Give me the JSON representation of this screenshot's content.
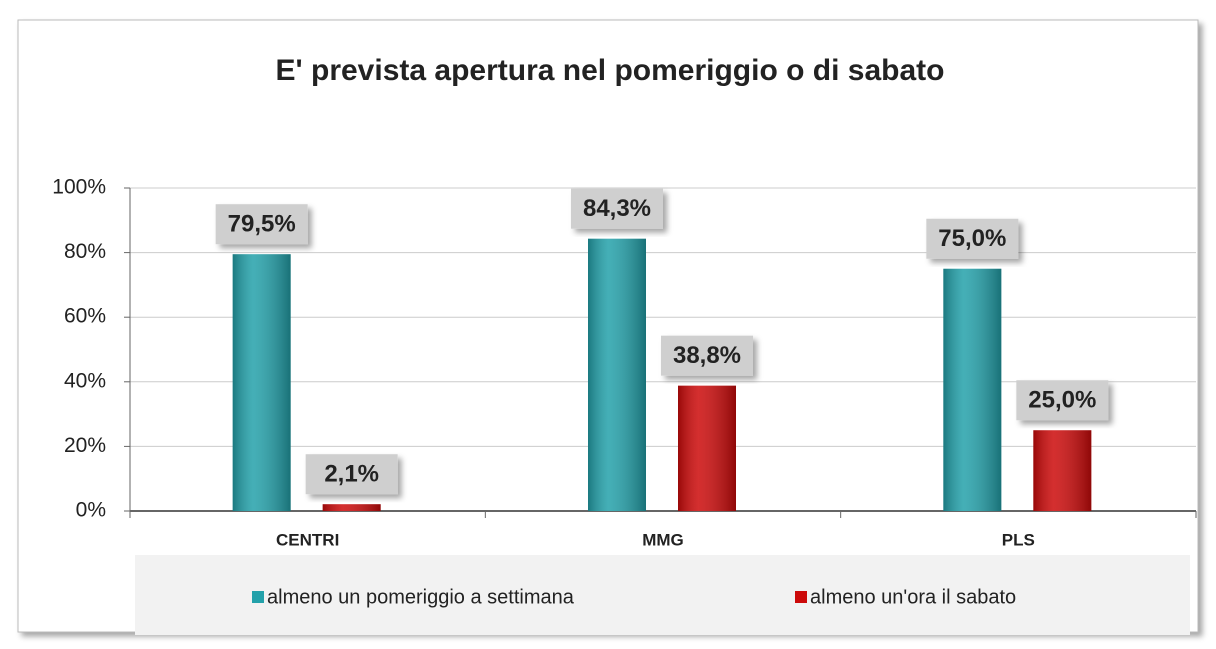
{
  "chart_data": {
    "type": "bar",
    "title": "E' prevista apertura nel pomeriggio o di sabato",
    "categories": [
      "CENTRI",
      "MMG",
      "PLS"
    ],
    "series": [
      {
        "name": "almeno un pomeriggio a settimana",
        "color": "#23a1aa",
        "values": [
          79.5,
          84.3,
          75.0
        ],
        "value_labels": [
          "79,5%",
          "84,3%",
          "75,0%"
        ]
      },
      {
        "name": "almeno un'ora il sabato",
        "color": "#cc0a0a",
        "values": [
          2.1,
          38.8,
          25.0
        ],
        "value_labels": [
          "2,1%",
          "38,8%",
          "25,0%"
        ]
      }
    ],
    "ylim": [
      0,
      100
    ],
    "yticks": [
      {
        "value": 0,
        "label": "0%"
      },
      {
        "value": 20,
        "label": "20%"
      },
      {
        "value": 40,
        "label": "40%"
      },
      {
        "value": 60,
        "label": "60%"
      },
      {
        "value": 80,
        "label": "80%"
      },
      {
        "value": 100,
        "label": "100%"
      }
    ],
    "grid": true,
    "legend": "bottom"
  }
}
